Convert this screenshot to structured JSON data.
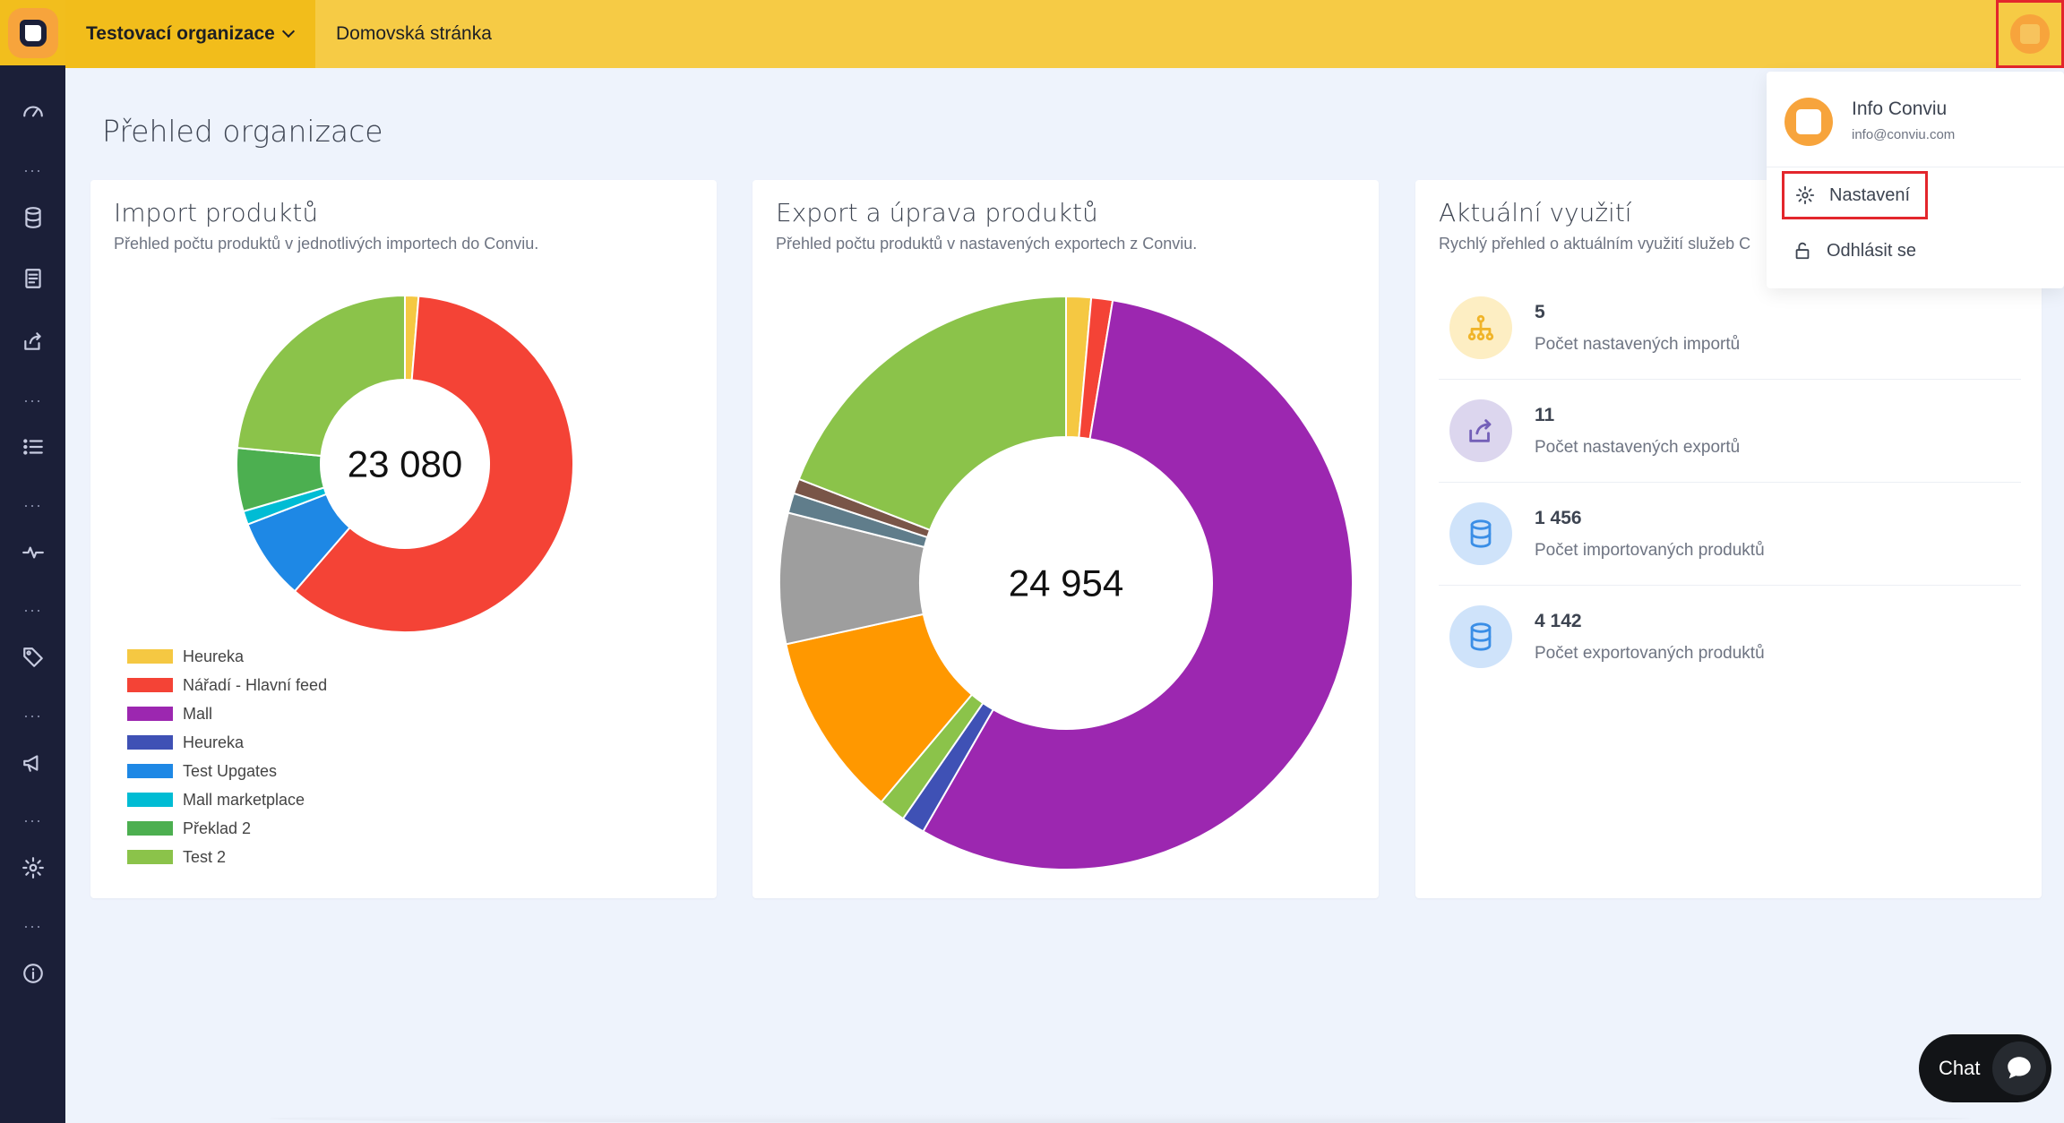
{
  "topbar": {
    "org_name": "Testovací organizace",
    "breadcrumb": "Domovská stránka"
  },
  "page": {
    "title": "Přehled organizace"
  },
  "sidebar": {
    "icons": [
      "speedometer-icon",
      "database-icon",
      "document-icon",
      "share-icon",
      "list-icon",
      "pulse-icon",
      "tag-icon",
      "megaphone-icon",
      "gear-icon",
      "info-icon"
    ]
  },
  "import_card": {
    "title": "Import produktů",
    "subtitle": "Přehled počtu produktů v jednotlivých importech do Conviu.",
    "total": "23 080",
    "legend": [
      {
        "label": "Heureka",
        "color": "#f5c842"
      },
      {
        "label": "Nářadí - Hlavní feed",
        "color": "#f44336"
      },
      {
        "label": "Mall",
        "color": "#9c27b0"
      },
      {
        "label": "Heureka",
        "color": "#3f51b5"
      },
      {
        "label": "Test Upgates",
        "color": "#1e88e5"
      },
      {
        "label": "Mall marketplace",
        "color": "#00bcd4"
      },
      {
        "label": "Překlad 2",
        "color": "#4caf50"
      },
      {
        "label": "Test 2",
        "color": "#8bc34a"
      }
    ]
  },
  "export_card": {
    "title": "Export a úprava produktů",
    "subtitle": "Přehled počtu produktů v nastavených exportech z Conviu.",
    "total": "24 954"
  },
  "usage_card": {
    "title": "Aktuální využití",
    "subtitle": "Rychlý přehled o aktuálním využití služeb C",
    "stats": [
      {
        "value": "5",
        "label": "Počet nastavených importů",
        "icon": "hierarchy-icon",
        "bg": "#fdeec3",
        "color": "#f0b429"
      },
      {
        "value": "11",
        "label": "Počet nastavených exportů",
        "icon": "share-icon",
        "bg": "#dcd6ee",
        "color": "#7460b8"
      },
      {
        "value": "1 456",
        "label": "Počet importovaných produktů",
        "icon": "database-icon",
        "bg": "#cfe3fa",
        "color": "#3a8ee6"
      },
      {
        "value": "4 142",
        "label": "Počet exportovaných produktů",
        "icon": "database-icon",
        "bg": "#cfe3fa",
        "color": "#3a8ee6"
      }
    ]
  },
  "user_menu": {
    "name": "Info Conviu",
    "email": "info@conviu.com",
    "settings": "Nastavení",
    "logout": "Odhlásit se"
  },
  "chat": {
    "label": "Chat"
  },
  "chart_data": [
    {
      "type": "pie",
      "title": "Import produktů",
      "categories": [
        "Heureka",
        "Nářadí - Hlavní feed",
        "Mall",
        "Heureka",
        "Test Upgates",
        "Mall marketplace",
        "Překlad 2",
        "Test 2"
      ],
      "values": [
        300,
        13860,
        0,
        0,
        1800,
        300,
        1400,
        5420
      ],
      "colors": [
        "#f5c842",
        "#f44336",
        "#9c27b0",
        "#3f51b5",
        "#1e88e5",
        "#00bcd4",
        "#4caf50",
        "#8bc34a"
      ]
    },
    {
      "type": "pie",
      "title": "Export a úprava produktů",
      "values": [
        350,
        300,
        13900,
        330,
        380,
        2600,
        1840,
        280,
        210,
        4764
      ],
      "colors": [
        "#f5c842",
        "#f44336",
        "#9c27b0",
        "#3f51b5",
        "#8bc34a",
        "#ff9800",
        "#9e9e9e",
        "#607d8b",
        "#795548",
        "#8bc34a"
      ]
    }
  ]
}
